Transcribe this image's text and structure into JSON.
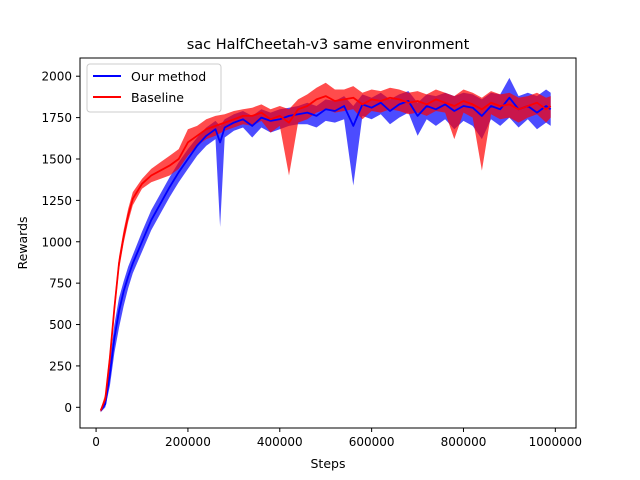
{
  "chart_data": {
    "type": "line",
    "title": "sac HalfCheetah-v3 same environment",
    "xlabel": "Steps",
    "ylabel": "Rewards",
    "xlim": [
      -35000,
      1045000
    ],
    "ylim": [
      -125,
      2110
    ],
    "xticks": [
      0,
      200000,
      400000,
      600000,
      800000,
      1000000
    ],
    "xtick_labels": [
      "0",
      "200000",
      "400000",
      "600000",
      "800000",
      "1000000"
    ],
    "yticks": [
      0,
      250,
      500,
      750,
      1000,
      1250,
      1500,
      1750,
      2000
    ],
    "ytick_labels": [
      "0",
      "250",
      "500",
      "750",
      "1000",
      "1250",
      "1500",
      "1750",
      "2000"
    ],
    "grid": false,
    "legend_position": "upper left",
    "series": [
      {
        "name": "Our method",
        "color": "#0000ff",
        "x": [
          10000,
          20000,
          30000,
          40000,
          50000,
          60000,
          70000,
          80000,
          100000,
          120000,
          140000,
          160000,
          180000,
          200000,
          220000,
          240000,
          260000,
          270000,
          280000,
          300000,
          320000,
          340000,
          360000,
          380000,
          400000,
          420000,
          440000,
          460000,
          480000,
          500000,
          520000,
          540000,
          560000,
          580000,
          600000,
          620000,
          640000,
          660000,
          680000,
          700000,
          720000,
          740000,
          760000,
          780000,
          800000,
          820000,
          840000,
          860000,
          880000,
          900000,
          920000,
          940000,
          960000,
          980000,
          990000
        ],
        "mean": [
          -20,
          20,
          200,
          420,
          580,
          700,
          790,
          870,
          1000,
          1130,
          1230,
          1330,
          1420,
          1500,
          1580,
          1640,
          1680,
          1600,
          1690,
          1720,
          1740,
          1700,
          1750,
          1730,
          1740,
          1760,
          1770,
          1780,
          1760,
          1800,
          1790,
          1820,
          1700,
          1830,
          1810,
          1840,
          1790,
          1830,
          1850,
          1760,
          1820,
          1800,
          1830,
          1790,
          1820,
          1810,
          1760,
          1820,
          1800,
          1870,
          1800,
          1820,
          1780,
          1820,
          1800
        ],
        "upper": [
          -10,
          40,
          280,
          500,
          660,
          760,
          850,
          920,
          1060,
          1190,
          1290,
          1390,
          1480,
          1560,
          1630,
          1690,
          1730,
          1700,
          1740,
          1770,
          1790,
          1760,
          1800,
          1780,
          1800,
          1810,
          1820,
          1840,
          1820,
          1860,
          1850,
          1880,
          1820,
          1890,
          1870,
          1900,
          1860,
          1890,
          1910,
          1840,
          1890,
          1880,
          1900,
          1880,
          1900,
          1890,
          1860,
          1900,
          1890,
          1990,
          1880,
          1900,
          1880,
          1920,
          1900
        ],
        "lower": [
          -30,
          0,
          130,
          330,
          480,
          610,
          720,
          810,
          940,
          1070,
          1170,
          1270,
          1360,
          1440,
          1520,
          1580,
          1620,
          1090,
          1630,
          1670,
          1690,
          1630,
          1690,
          1660,
          1680,
          1700,
          1710,
          1710,
          1690,
          1730,
          1720,
          1740,
          1340,
          1760,
          1740,
          1770,
          1710,
          1750,
          1780,
          1640,
          1740,
          1700,
          1740,
          1680,
          1730,
          1700,
          1620,
          1740,
          1700,
          1750,
          1690,
          1740,
          1680,
          1720,
          1700
        ]
      },
      {
        "name": "Baseline",
        "color": "#ff0000",
        "x": [
          10000,
          20000,
          30000,
          40000,
          50000,
          60000,
          70000,
          80000,
          100000,
          120000,
          140000,
          160000,
          180000,
          200000,
          220000,
          240000,
          260000,
          280000,
          300000,
          320000,
          340000,
          360000,
          380000,
          400000,
          420000,
          440000,
          460000,
          480000,
          500000,
          520000,
          540000,
          560000,
          580000,
          600000,
          620000,
          640000,
          660000,
          680000,
          700000,
          720000,
          740000,
          760000,
          780000,
          800000,
          820000,
          840000,
          860000,
          880000,
          900000,
          920000,
          940000,
          960000,
          980000,
          990000
        ],
        "mean": [
          -20,
          50,
          300,
          600,
          870,
          1030,
          1160,
          1260,
          1350,
          1400,
          1430,
          1460,
          1500,
          1600,
          1640,
          1680,
          1700,
          1720,
          1740,
          1760,
          1760,
          1780,
          1740,
          1760,
          1720,
          1800,
          1820,
          1860,
          1880,
          1850,
          1860,
          1870,
          1830,
          1860,
          1850,
          1870,
          1860,
          1840,
          1850,
          1830,
          1860,
          1840,
          1820,
          1850,
          1830,
          1800,
          1840,
          1820,
          1830,
          1800,
          1820,
          1840,
          1800,
          1820
        ],
        "upper": [
          -10,
          80,
          340,
          640,
          910,
          1070,
          1200,
          1300,
          1380,
          1440,
          1480,
          1520,
          1560,
          1680,
          1700,
          1740,
          1760,
          1770,
          1790,
          1800,
          1810,
          1830,
          1800,
          1820,
          1800,
          1860,
          1890,
          1930,
          1960,
          1920,
          1920,
          1940,
          1900,
          1920,
          1910,
          1930,
          1920,
          1900,
          1910,
          1890,
          1920,
          1900,
          1880,
          1920,
          1900,
          1870,
          1910,
          1890,
          1900,
          1870,
          1880,
          1900,
          1870,
          1880
        ],
        "lower": [
          -30,
          20,
          260,
          560,
          830,
          990,
          1120,
          1220,
          1320,
          1360,
          1380,
          1400,
          1440,
          1520,
          1580,
          1620,
          1640,
          1670,
          1690,
          1710,
          1700,
          1730,
          1660,
          1700,
          1400,
          1720,
          1740,
          1780,
          1800,
          1780,
          1790,
          1800,
          1740,
          1790,
          1780,
          1800,
          1790,
          1770,
          1780,
          1760,
          1790,
          1780,
          1620,
          1780,
          1750,
          1430,
          1770,
          1740,
          1750,
          1720,
          1750,
          1770,
          1720,
          1750
        ]
      }
    ]
  }
}
